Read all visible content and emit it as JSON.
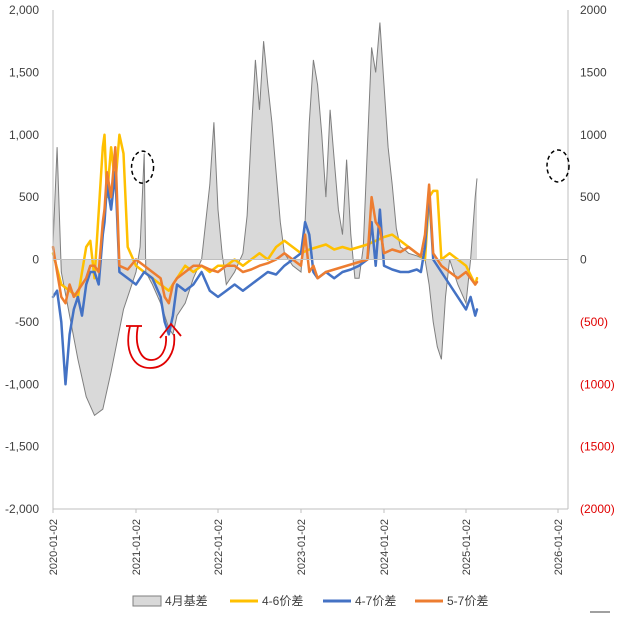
{
  "chart_data": {
    "type": "line",
    "title": "",
    "x_tick_labels": [
      "2020-01-02",
      "2021-01-02",
      "2022-01-02",
      "2023-01-02",
      "2024-01-02",
      "2025-01-02",
      "2026-01-02"
    ],
    "left_axis": {
      "ylim": [
        -2000,
        2000
      ],
      "ticks": [
        2000,
        1500,
        1000,
        500,
        0,
        -500,
        -1000,
        -1500,
        -2000
      ],
      "tick_labels": [
        "2,000",
        "1,500",
        "1,000",
        "500",
        "0",
        "-500",
        "-1,000",
        "-1,500",
        "-2,000"
      ]
    },
    "right_axis": {
      "ylim": [
        -2000,
        2000
      ],
      "ticks": [
        2000,
        1500,
        1000,
        500,
        0,
        -500,
        -1000,
        -1500,
        -2000
      ],
      "tick_labels": [
        "2000",
        "1500",
        "1000",
        "500",
        "0",
        "(500)",
        "(1000)",
        "(1500)",
        "(2000)"
      ],
      "negative_color": "#E00000"
    },
    "series": [
      {
        "name": "4月基差",
        "kind": "area",
        "color": "#7F7F7F",
        "fill": "#D9D9D9",
        "points": [
          [
            0.0,
            120
          ],
          [
            0.05,
            900
          ],
          [
            0.1,
            -100
          ],
          [
            0.2,
            -450
          ],
          [
            0.3,
            -800
          ],
          [
            0.4,
            -1100
          ],
          [
            0.5,
            -1250
          ],
          [
            0.6,
            -1200
          ],
          [
            0.7,
            -900
          ],
          [
            0.85,
            -400
          ],
          [
            1.0,
            -100
          ],
          [
            1.05,
            100
          ],
          [
            1.1,
            850
          ],
          [
            1.12,
            -100
          ],
          [
            1.2,
            -200
          ],
          [
            1.3,
            -350
          ],
          [
            1.4,
            -550
          ],
          [
            1.45,
            -600
          ],
          [
            1.5,
            -450
          ],
          [
            1.6,
            -350
          ],
          [
            1.7,
            -150
          ],
          [
            1.8,
            0
          ],
          [
            1.9,
            600
          ],
          [
            1.95,
            1100
          ],
          [
            2.0,
            400
          ],
          [
            2.05,
            50
          ],
          [
            2.1,
            -200
          ],
          [
            2.2,
            -100
          ],
          [
            2.3,
            50
          ],
          [
            2.35,
            350
          ],
          [
            2.4,
            1000
          ],
          [
            2.45,
            1600
          ],
          [
            2.5,
            1200
          ],
          [
            2.55,
            1750
          ],
          [
            2.6,
            1400
          ],
          [
            2.65,
            1100
          ],
          [
            2.7,
            700
          ],
          [
            2.75,
            300
          ],
          [
            2.8,
            50
          ],
          [
            2.9,
            -50
          ],
          [
            3.0,
            -100
          ],
          [
            3.05,
            300
          ],
          [
            3.1,
            1100
          ],
          [
            3.15,
            1600
          ],
          [
            3.2,
            1400
          ],
          [
            3.25,
            1000
          ],
          [
            3.3,
            500
          ],
          [
            3.35,
            1200
          ],
          [
            3.4,
            800
          ],
          [
            3.45,
            400
          ],
          [
            3.5,
            200
          ],
          [
            3.55,
            800
          ],
          [
            3.6,
            200
          ],
          [
            3.65,
            -150
          ],
          [
            3.7,
            -150
          ],
          [
            3.75,
            100
          ],
          [
            3.8,
            900
          ],
          [
            3.85,
            1700
          ],
          [
            3.9,
            1500
          ],
          [
            3.95,
            1900
          ],
          [
            4.0,
            1400
          ],
          [
            4.05,
            900
          ],
          [
            4.1,
            600
          ],
          [
            4.15,
            250
          ],
          [
            4.2,
            100
          ],
          [
            4.25,
            80
          ],
          [
            4.3,
            50
          ],
          [
            4.4,
            30
          ],
          [
            4.5,
            0
          ],
          [
            4.55,
            -200
          ],
          [
            4.6,
            -500
          ],
          [
            4.65,
            -700
          ],
          [
            4.7,
            -800
          ],
          [
            4.75,
            -300
          ],
          [
            4.8,
            0
          ],
          [
            4.9,
            -200
          ],
          [
            5.0,
            -350
          ],
          [
            5.05,
            0
          ],
          [
            5.1,
            500
          ],
          [
            5.12,
            650
          ]
        ]
      },
      {
        "name": "4-6价差",
        "kind": "line",
        "color": "#FFC000",
        "points": [
          [
            0.0,
            50
          ],
          [
            0.1,
            -200
          ],
          [
            0.2,
            -250
          ],
          [
            0.3,
            -300
          ],
          [
            0.4,
            100
          ],
          [
            0.45,
            150
          ],
          [
            0.5,
            -150
          ],
          [
            0.6,
            900
          ],
          [
            0.62,
            1000
          ],
          [
            0.65,
            500
          ],
          [
            0.7,
            900
          ],
          [
            0.75,
            600
          ],
          [
            0.8,
            1000
          ],
          [
            0.85,
            850
          ],
          [
            0.9,
            100
          ],
          [
            1.0,
            -50
          ],
          [
            1.1,
            -100
          ],
          [
            1.2,
            -150
          ],
          [
            1.3,
            -200
          ],
          [
            1.4,
            -250
          ],
          [
            1.5,
            -150
          ],
          [
            1.6,
            -50
          ],
          [
            1.7,
            -100
          ],
          [
            1.8,
            -50
          ],
          [
            1.9,
            -100
          ],
          [
            2.0,
            -50
          ],
          [
            2.1,
            -50
          ],
          [
            2.2,
            0
          ],
          [
            2.3,
            -50
          ],
          [
            2.4,
            0
          ],
          [
            2.5,
            50
          ],
          [
            2.6,
            0
          ],
          [
            2.7,
            100
          ],
          [
            2.8,
            150
          ],
          [
            2.9,
            100
          ],
          [
            3.0,
            50
          ],
          [
            3.1,
            80
          ],
          [
            3.2,
            100
          ],
          [
            3.3,
            120
          ],
          [
            3.4,
            80
          ],
          [
            3.5,
            100
          ],
          [
            3.6,
            80
          ],
          [
            3.7,
            100
          ],
          [
            3.8,
            120
          ],
          [
            3.9,
            150
          ],
          [
            4.0,
            180
          ],
          [
            4.1,
            200
          ],
          [
            4.2,
            150
          ],
          [
            4.3,
            100
          ],
          [
            4.4,
            50
          ],
          [
            4.5,
            0
          ],
          [
            4.55,
            500
          ],
          [
            4.6,
            550
          ],
          [
            4.65,
            550
          ],
          [
            4.7,
            0
          ],
          [
            4.8,
            50
          ],
          [
            4.9,
            0
          ],
          [
            5.0,
            -50
          ],
          [
            5.1,
            -200
          ],
          [
            5.12,
            -150
          ]
        ]
      },
      {
        "name": "4-7价差",
        "kind": "line",
        "color": "#4472C4",
        "points": [
          [
            0.0,
            -300
          ],
          [
            0.05,
            -250
          ],
          [
            0.1,
            -500
          ],
          [
            0.15,
            -1000
          ],
          [
            0.2,
            -600
          ],
          [
            0.25,
            -400
          ],
          [
            0.3,
            -300
          ],
          [
            0.35,
            -450
          ],
          [
            0.4,
            -200
          ],
          [
            0.45,
            -100
          ],
          [
            0.5,
            -100
          ],
          [
            0.55,
            -200
          ],
          [
            0.6,
            200
          ],
          [
            0.62,
            300
          ],
          [
            0.65,
            600
          ],
          [
            0.7,
            400
          ],
          [
            0.75,
            700
          ],
          [
            0.8,
            -100
          ],
          [
            0.9,
            -150
          ],
          [
            1.0,
            -200
          ],
          [
            1.1,
            -100
          ],
          [
            1.2,
            -150
          ],
          [
            1.3,
            -300
          ],
          [
            1.35,
            -500
          ],
          [
            1.4,
            -600
          ],
          [
            1.45,
            -450
          ],
          [
            1.5,
            -200
          ],
          [
            1.6,
            -250
          ],
          [
            1.7,
            -200
          ],
          [
            1.8,
            -100
          ],
          [
            1.9,
            -250
          ],
          [
            2.0,
            -300
          ],
          [
            2.1,
            -250
          ],
          [
            2.2,
            -200
          ],
          [
            2.3,
            -250
          ],
          [
            2.4,
            -200
          ],
          [
            2.5,
            -150
          ],
          [
            2.6,
            -100
          ],
          [
            2.7,
            -120
          ],
          [
            2.8,
            -50
          ],
          [
            2.9,
            0
          ],
          [
            3.0,
            50
          ],
          [
            3.05,
            300
          ],
          [
            3.1,
            200
          ],
          [
            3.15,
            -100
          ],
          [
            3.2,
            -150
          ],
          [
            3.3,
            -100
          ],
          [
            3.4,
            -150
          ],
          [
            3.5,
            -100
          ],
          [
            3.6,
            -80
          ],
          [
            3.7,
            -50
          ],
          [
            3.8,
            0
          ],
          [
            3.85,
            300
          ],
          [
            3.9,
            -50
          ],
          [
            3.95,
            400
          ],
          [
            4.0,
            -50
          ],
          [
            4.1,
            -80
          ],
          [
            4.2,
            -100
          ],
          [
            4.3,
            -100
          ],
          [
            4.4,
            -80
          ],
          [
            4.45,
            -100
          ],
          [
            4.5,
            100
          ],
          [
            4.55,
            550
          ],
          [
            4.6,
            0
          ],
          [
            4.7,
            -100
          ],
          [
            4.8,
            -200
          ],
          [
            4.9,
            -300
          ],
          [
            5.0,
            -400
          ],
          [
            5.05,
            -300
          ],
          [
            5.1,
            -450
          ],
          [
            5.12,
            -400
          ]
        ]
      },
      {
        "name": "5-7价差",
        "kind": "line",
        "color": "#ED7D31",
        "points": [
          [
            0.0,
            100
          ],
          [
            0.05,
            -100
          ],
          [
            0.1,
            -300
          ],
          [
            0.15,
            -350
          ],
          [
            0.2,
            -200
          ],
          [
            0.25,
            -300
          ],
          [
            0.3,
            -250
          ],
          [
            0.35,
            -200
          ],
          [
            0.4,
            -150
          ],
          [
            0.45,
            -50
          ],
          [
            0.5,
            -50
          ],
          [
            0.55,
            -100
          ],
          [
            0.6,
            300
          ],
          [
            0.62,
            400
          ],
          [
            0.65,
            700
          ],
          [
            0.7,
            500
          ],
          [
            0.75,
            900
          ],
          [
            0.8,
            -50
          ],
          [
            0.9,
            -80
          ],
          [
            1.0,
            0
          ],
          [
            1.1,
            -50
          ],
          [
            1.2,
            -100
          ],
          [
            1.3,
            -150
          ],
          [
            1.35,
            -300
          ],
          [
            1.4,
            -350
          ],
          [
            1.45,
            -200
          ],
          [
            1.5,
            -150
          ],
          [
            1.6,
            -100
          ],
          [
            1.7,
            -50
          ],
          [
            1.8,
            -50
          ],
          [
            1.9,
            -80
          ],
          [
            2.0,
            -100
          ],
          [
            2.1,
            -50
          ],
          [
            2.2,
            -50
          ],
          [
            2.3,
            -100
          ],
          [
            2.4,
            -80
          ],
          [
            2.5,
            -50
          ],
          [
            2.6,
            -30
          ],
          [
            2.7,
            0
          ],
          [
            2.8,
            50
          ],
          [
            2.9,
            0
          ],
          [
            3.0,
            -50
          ],
          [
            3.05,
            200
          ],
          [
            3.1,
            -100
          ],
          [
            3.15,
            -50
          ],
          [
            3.2,
            -150
          ],
          [
            3.3,
            -100
          ],
          [
            3.4,
            -80
          ],
          [
            3.5,
            -60
          ],
          [
            3.6,
            -40
          ],
          [
            3.7,
            -20
          ],
          [
            3.8,
            0
          ],
          [
            3.85,
            500
          ],
          [
            3.9,
            300
          ],
          [
            3.95,
            250
          ],
          [
            4.0,
            50
          ],
          [
            4.1,
            80
          ],
          [
            4.2,
            60
          ],
          [
            4.3,
            100
          ],
          [
            4.4,
            50
          ],
          [
            4.45,
            30
          ],
          [
            4.5,
            200
          ],
          [
            4.55,
            600
          ],
          [
            4.6,
            50
          ],
          [
            4.7,
            -50
          ],
          [
            4.8,
            -100
          ],
          [
            4.9,
            -150
          ],
          [
            5.0,
            -100
          ],
          [
            5.05,
            -150
          ],
          [
            5.1,
            -200
          ],
          [
            5.12,
            -180
          ]
        ]
      }
    ],
    "x_domain": [
      0,
      5.12
    ],
    "x_tick_positions": [
      0,
      1,
      2,
      3,
      4,
      5,
      6
    ],
    "annotations": [
      {
        "type": "dashed-ellipse",
        "x": 1.08,
        "y": 740
      },
      {
        "type": "dashed-ellipse",
        "x": 6.08,
        "y": 750
      },
      {
        "type": "u-turn-arrow",
        "x": 1.2,
        "y": -700,
        "color": "#E00000"
      }
    ],
    "grid": false,
    "legend_position": "bottom"
  }
}
